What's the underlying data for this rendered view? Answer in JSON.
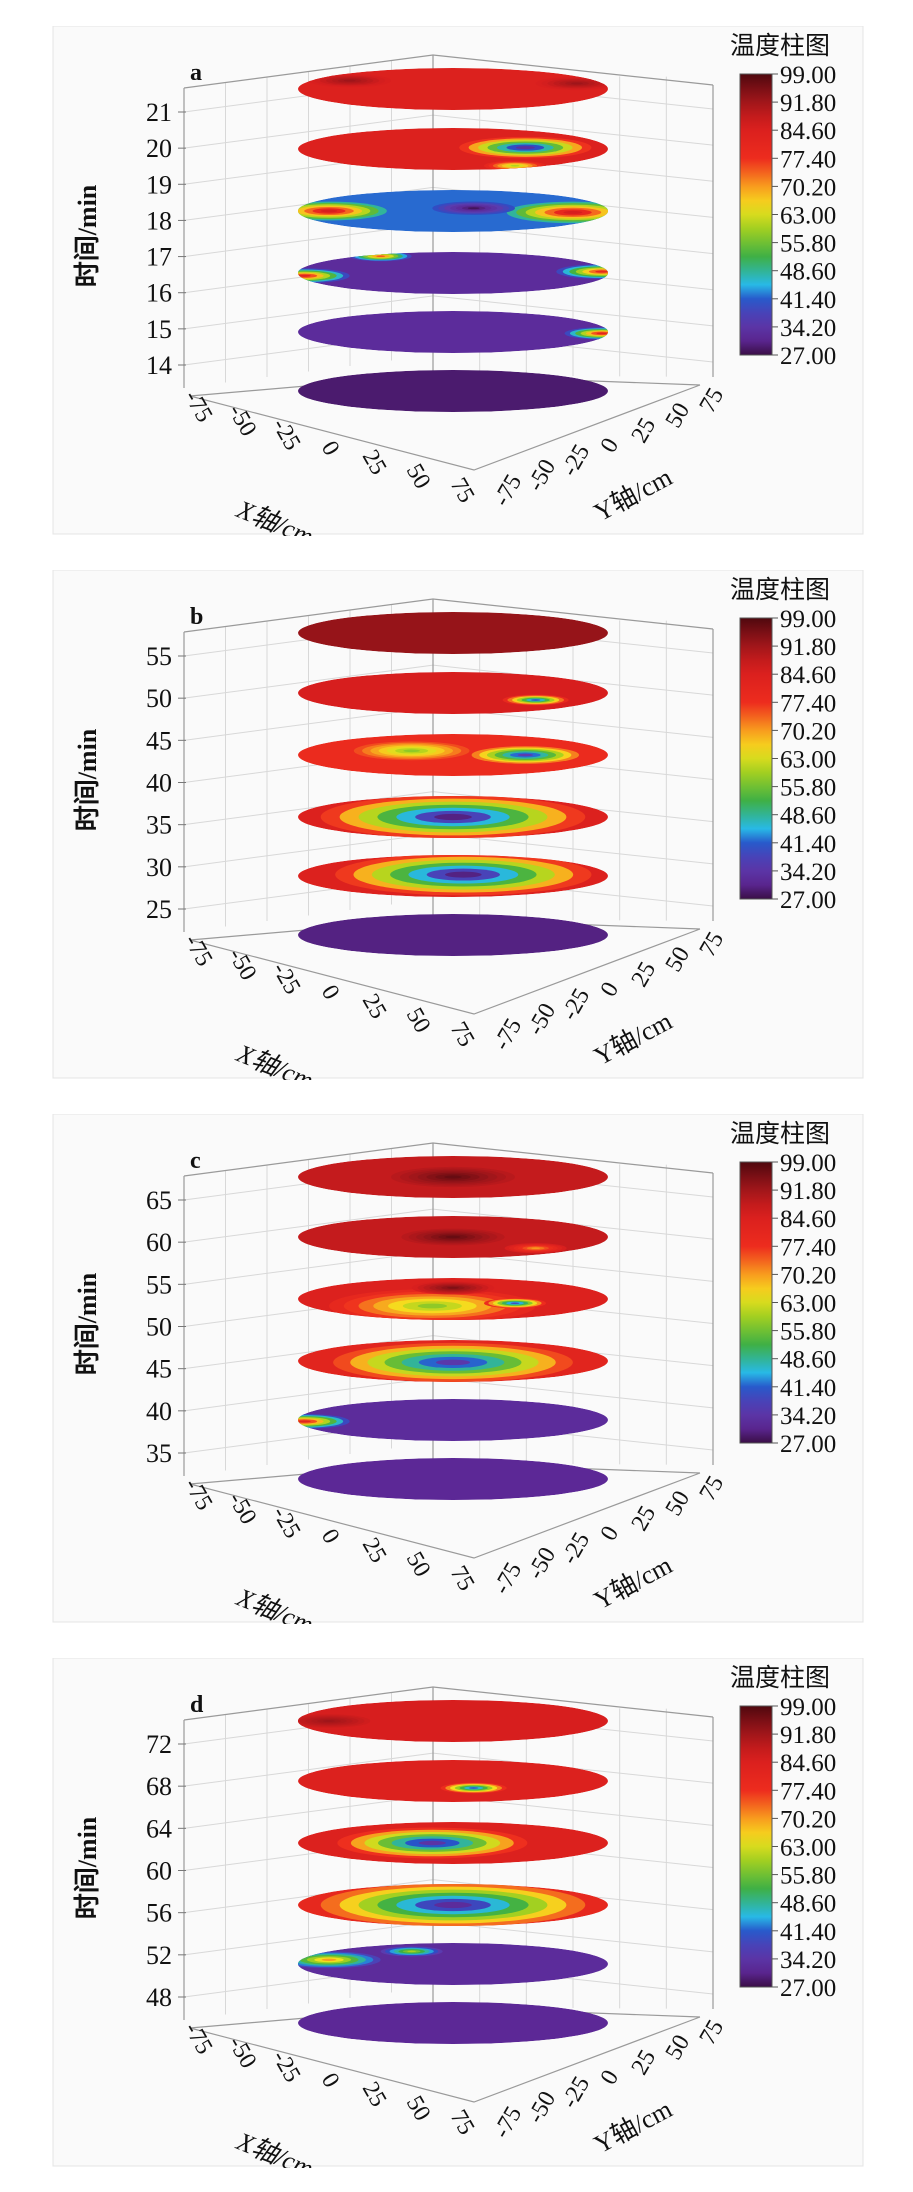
{
  "chart_data": [
    {
      "type": "heatmap",
      "panel_label": "a",
      "xlabel": "X轴/cm",
      "ylabel": "Y轴/cm",
      "zlabel": "时间/min",
      "x_ticks": [
        "-75",
        "-50",
        "-25",
        "0",
        "25",
        "50",
        "75"
      ],
      "y_ticks": [
        "-75",
        "-50",
        "-25",
        "0",
        "25",
        "50",
        "75"
      ],
      "z_ticks": [
        "14",
        "15",
        "16",
        "17",
        "18",
        "19",
        "20",
        "21"
      ],
      "colorbar_title": "温度柱图",
      "colorbar_ticks": [
        "99.00",
        "91.80",
        "84.60",
        "77.40",
        "70.20",
        "63.00",
        "55.80",
        "48.60",
        "41.40",
        "34.20",
        "27.00"
      ],
      "colorbar_range": [
        27,
        99
      ],
      "layers": [
        {
          "base": 84,
          "spots": [
            {
              "x": 60,
              "y": 20,
              "r": 20,
              "value": 92
            },
            {
              "x": -50,
              "y": 30,
              "r": 20,
              "value": 92
            }
          ]
        },
        {
          "base": 84,
          "spots": [
            {
              "x": 35,
              "y": 5,
              "r": 32,
              "value": 33
            },
            {
              "x": 30,
              "y": -60,
              "r": 15,
              "value": 60
            }
          ]
        },
        {
          "base": 42,
          "spots": [
            {
              "x": -60,
              "y": 0,
              "r": 28,
              "value": 86
            },
            {
              "x": 58,
              "y": -5,
              "r": 32,
              "value": 86
            },
            {
              "x": 10,
              "y": 10,
              "r": 20,
              "value": 28
            }
          ]
        },
        {
          "base": 32,
          "spots": [
            {
              "x": -72,
              "y": -10,
              "r": 22,
              "value": 82
            },
            {
              "x": 72,
              "y": 5,
              "r": 22,
              "value": 80
            },
            {
              "x": -35,
              "y": 60,
              "r": 15,
              "value": 75
            }
          ]
        },
        {
          "base": 32,
          "spots": [
            {
              "x": 72,
              "y": -5,
              "r": 18,
              "value": 82
            }
          ]
        },
        {
          "base": 29,
          "spots": []
        }
      ]
    },
    {
      "type": "heatmap",
      "panel_label": "b",
      "xlabel": "X轴/cm",
      "ylabel": "Y轴/cm",
      "zlabel": "时间/min",
      "x_ticks": [
        "-75",
        "-50",
        "-25",
        "0",
        "25",
        "50",
        "75"
      ],
      "y_ticks": [
        "-75",
        "-50",
        "-25",
        "0",
        "25",
        "50",
        "75"
      ],
      "z_ticks": [
        "25",
        "30",
        "35",
        "40",
        "45",
        "50",
        "55"
      ],
      "colorbar_title": "温度柱图",
      "colorbar_ticks": [
        "99.00",
        "91.80",
        "84.60",
        "77.40",
        "70.20",
        "63.00",
        "55.80",
        "48.60",
        "41.40",
        "34.20",
        "27.00"
      ],
      "colorbar_range": [
        27,
        99
      ],
      "layers": [
        {
          "base": 93,
          "spots": []
        },
        {
          "base": 86,
          "spots": [
            {
              "x": 40,
              "y": -25,
              "r": 16,
              "value": 40
            }
          ]
        },
        {
          "base": 78,
          "spots": [
            {
              "x": 35,
              "y": 0,
              "r": 26,
              "value": 36
            },
            {
              "x": -20,
              "y": 15,
              "r": 28,
              "value": 58
            }
          ]
        },
        {
          "base": 84,
          "spots": [
            {
              "x": 0,
              "y": 0,
              "r": 64,
              "value": 30
            }
          ]
        },
        {
          "base": 84,
          "spots": [
            {
              "x": 5,
              "y": 5,
              "r": 62,
              "value": 30
            }
          ]
        },
        {
          "base": 30,
          "spots": []
        }
      ]
    },
    {
      "type": "heatmap",
      "panel_label": "c",
      "xlabel": "X轴/cm",
      "ylabel": "Y轴/cm",
      "zlabel": "时间/min",
      "x_ticks": [
        "-75",
        "-50",
        "-25",
        "0",
        "25",
        "50",
        "75"
      ],
      "y_ticks": [
        "-75",
        "-50",
        "-25",
        "0",
        "25",
        "50",
        "75"
      ],
      "z_ticks": [
        "35",
        "40",
        "45",
        "50",
        "55",
        "60",
        "65"
      ],
      "colorbar_title": "温度柱图",
      "colorbar_ticks": [
        "99.00",
        "91.80",
        "84.60",
        "77.40",
        "70.20",
        "63.00",
        "55.80",
        "48.60",
        "41.40",
        "34.20",
        "27.00"
      ],
      "colorbar_range": [
        27,
        99
      ],
      "layers": [
        {
          "base": 88,
          "spots": [
            {
              "x": 0,
              "y": 0,
              "r": 30,
              "value": 97
            }
          ]
        },
        {
          "base": 88,
          "spots": [
            {
              "x": 0,
              "y": 0,
              "r": 25,
              "value": 97
            },
            {
              "x": 40,
              "y": -40,
              "r": 15,
              "value": 70
            }
          ]
        },
        {
          "base": 84,
          "spots": [
            {
              "x": -10,
              "y": -25,
              "r": 50,
              "value": 58
            },
            {
              "x": 30,
              "y": -15,
              "r": 15,
              "value": 38
            },
            {
              "x": 0,
              "y": 40,
              "r": 20,
              "value": 95
            }
          ]
        },
        {
          "base": 82,
          "spots": [
            {
              "x": 0,
              "y": -5,
              "r": 58,
              "value": 35
            }
          ]
        },
        {
          "base": 32,
          "spots": [
            {
              "x": -72,
              "y": -5,
              "r": 22,
              "value": 82
            }
          ]
        },
        {
          "base": 31,
          "spots": []
        }
      ]
    },
    {
      "type": "heatmap",
      "panel_label": "d",
      "xlabel": "X轴/cm",
      "ylabel": "Y轴/cm",
      "zlabel": "时间/min",
      "x_ticks": [
        "-75",
        "-50",
        "-25",
        "0",
        "25",
        "50",
        "75"
      ],
      "y_ticks": [
        "-75",
        "-50",
        "-25",
        "0",
        "25",
        "50",
        "75"
      ],
      "z_ticks": [
        "48",
        "52",
        "56",
        "60",
        "64",
        "68",
        "72"
      ],
      "colorbar_title": "温度柱图",
      "colorbar_ticks": [
        "99.00",
        "91.80",
        "84.60",
        "77.40",
        "70.20",
        "63.00",
        "55.80",
        "48.60",
        "41.40",
        "34.20",
        "27.00"
      ],
      "colorbar_range": [
        27,
        99
      ],
      "layers": [
        {
          "base": 86,
          "spots": [
            {
              "x": -60,
              "y": 0,
              "r": 20,
              "value": 92
            }
          ]
        },
        {
          "base": 84,
          "spots": [
            {
              "x": 10,
              "y": -25,
              "r": 16,
              "value": 40
            }
          ]
        },
        {
          "base": 84,
          "spots": [
            {
              "x": -10,
              "y": 0,
              "r": 46,
              "value": 34
            }
          ]
        },
        {
          "base": 80,
          "spots": [
            {
              "x": 0,
              "y": 0,
              "r": 64,
              "value": 32
            }
          ]
        },
        {
          "base": 32,
          "spots": [
            {
              "x": -60,
              "y": 15,
              "r": 25,
              "value": 70
            },
            {
              "x": -20,
              "y": 45,
              "r": 15,
              "value": 60
            }
          ]
        },
        {
          "base": 31,
          "spots": []
        }
      ]
    }
  ]
}
